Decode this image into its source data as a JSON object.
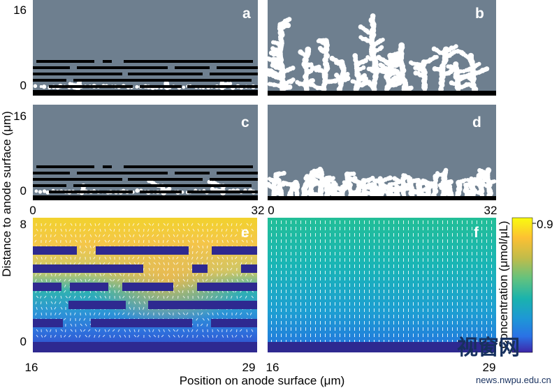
{
  "figure": {
    "y_axis_label": "Distance to anode surface (μm)",
    "x_axis_label": "Position on anode surface (μm)",
    "colorbar": {
      "label": "Concentration (μmol/μL)",
      "max_tick": "0.9"
    },
    "watermark": {
      "text": "视窗网",
      "url": "news.nwpu.edu.cn"
    }
  },
  "chart_data": [
    {
      "panel": "a",
      "type": "heatmap",
      "description_of_content": "dendrite morphology with separator layers",
      "y_ticks": [
        "0",
        "16"
      ],
      "ylim": [
        0,
        16
      ],
      "separator": true,
      "colors": {
        "background": "#6e7f8f",
        "dendrite": "#ffffff",
        "separator": "#000000",
        "anode": "#000000"
      }
    },
    {
      "panel": "b",
      "type": "heatmap",
      "y_ticks": [],
      "ylim": [
        0,
        16
      ],
      "separator": false,
      "colors": {
        "background": "#6e7f8f",
        "dendrite": "#ffffff",
        "anode": "#000000"
      }
    },
    {
      "panel": "c",
      "type": "heatmap",
      "y_ticks": [
        "0",
        "16"
      ],
      "ylim": [
        0,
        16
      ],
      "x_ticks": [
        "0",
        "32"
      ],
      "xlim": [
        0,
        32
      ],
      "separator": true,
      "colors": {
        "background": "#6e7f8f",
        "dendrite": "#ffffff",
        "separator": "#000000",
        "anode": "#000000"
      }
    },
    {
      "panel": "d",
      "type": "heatmap",
      "y_ticks": [],
      "ylim": [
        0,
        16
      ],
      "x_ticks": [
        "0",
        "32"
      ],
      "xlim": [
        0,
        32
      ],
      "separator": false,
      "colors": {
        "background": "#6e7f8f",
        "dendrite": "#ffffff",
        "anode": "#000000"
      }
    },
    {
      "panel": "e",
      "type": "heatmap",
      "y_ticks": [
        "0",
        "8"
      ],
      "ylim": [
        0,
        8
      ],
      "x_ticks": [
        "16",
        "29"
      ],
      "xlim": [
        16,
        29
      ],
      "concentration_range": [
        0,
        0.9
      ],
      "separator": true,
      "colors": {
        "separator": "#2e2990",
        "anode": "#2e2990"
      }
    },
    {
      "panel": "f",
      "type": "heatmap",
      "y_ticks": [],
      "ylim": [
        0,
        8
      ],
      "x_ticks": [
        "16",
        "29"
      ],
      "xlim": [
        16,
        29
      ],
      "concentration_range": [
        0,
        0.9
      ],
      "separator": false,
      "colors": {
        "anode": "#2e2990"
      }
    }
  ]
}
